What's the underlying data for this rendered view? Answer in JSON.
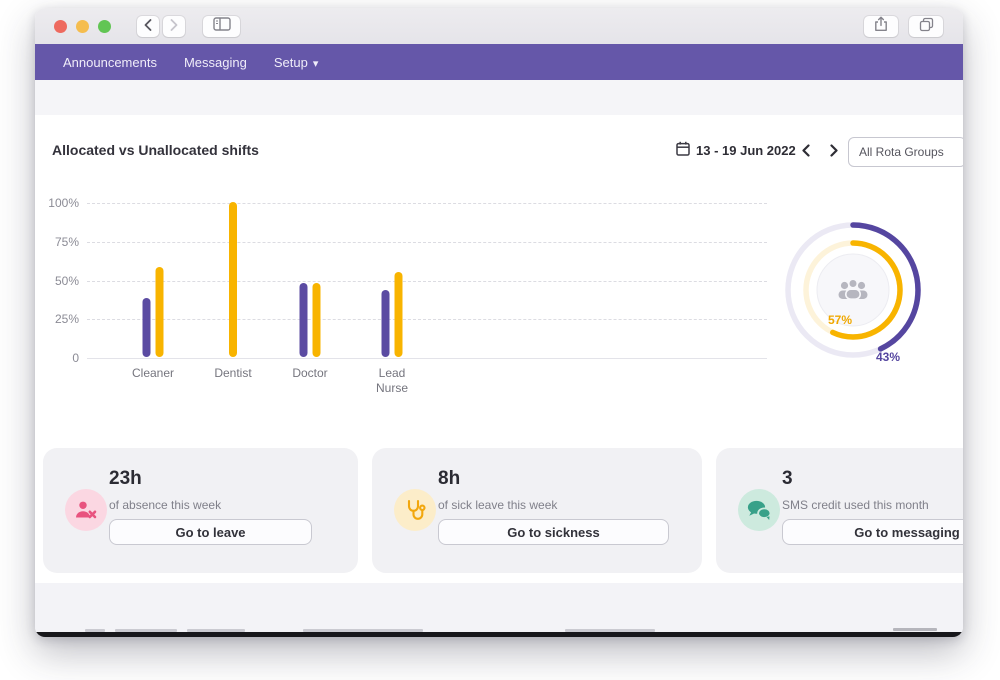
{
  "chrome": {
    "traffic_lights": [
      {
        "name": "close",
        "color": "#ee6a5f"
      },
      {
        "name": "minimize",
        "color": "#f5bd4f"
      },
      {
        "name": "zoom",
        "color": "#62c554"
      }
    ]
  },
  "nav": {
    "bg_color": "#6557a9",
    "items": [
      {
        "label": "Announcements"
      },
      {
        "label": "Messaging"
      },
      {
        "label": "Setup",
        "dropdown_caret": "▾"
      }
    ]
  },
  "toolbar": {
    "date_range": "13 - 19 Jun 2022",
    "rota_filter_value": "All Rota Groups"
  },
  "chart_data": [
    {
      "type": "bar",
      "title": "Allocated vs Unallocated shifts",
      "categories": [
        "Cleaner",
        "Dentist",
        "Doctor",
        "Lead Nurse"
      ],
      "series": [
        {
          "name": "allocated",
          "color": "#5b4ba2",
          "values": [
            38,
            0,
            48,
            43
          ]
        },
        {
          "name": "unallocated",
          "color": "#f8b400",
          "values": [
            58,
            100,
            48,
            55
          ]
        }
      ],
      "ylim": [
        0,
        100
      ],
      "yticks": [
        {
          "value": 100,
          "label": "100%"
        },
        {
          "value": 75,
          "label": "75%"
        },
        {
          "value": 50,
          "label": "50%"
        },
        {
          "value": 25,
          "label": "25%"
        },
        {
          "value": 0,
          "label": "0"
        }
      ],
      "grid": "dashed-horizontal",
      "legend": "none"
    },
    {
      "type": "radial",
      "rings": [
        {
          "name": "outer",
          "value": 43,
          "label": "43%",
          "color": "#5546a0",
          "track": "#ebe9f4"
        },
        {
          "name": "inner",
          "value": 57,
          "label": "57%",
          "color": "#f8b400",
          "track": "#fdf3da"
        }
      ],
      "center_icon": "people",
      "start": "top-clockwise"
    }
  ],
  "cards": [
    {
      "value": "23h",
      "subtitle": "of absence this week",
      "button": "Go to leave",
      "icon": "person-absence",
      "icon_color": "#e8537f",
      "icon_bg": "#fbd7e2"
    },
    {
      "value": "8h",
      "subtitle": "of sick leave this week",
      "button": "Go to sickness",
      "icon": "stethoscope",
      "icon_color": "#f2a70d",
      "icon_bg": "#fcedc9"
    },
    {
      "value": "3",
      "subtitle": "SMS credit used this month",
      "button": "Go to messaging",
      "icon": "chat-bubbles",
      "icon_color": "#38a189",
      "icon_bg": "#cdeade"
    }
  ]
}
